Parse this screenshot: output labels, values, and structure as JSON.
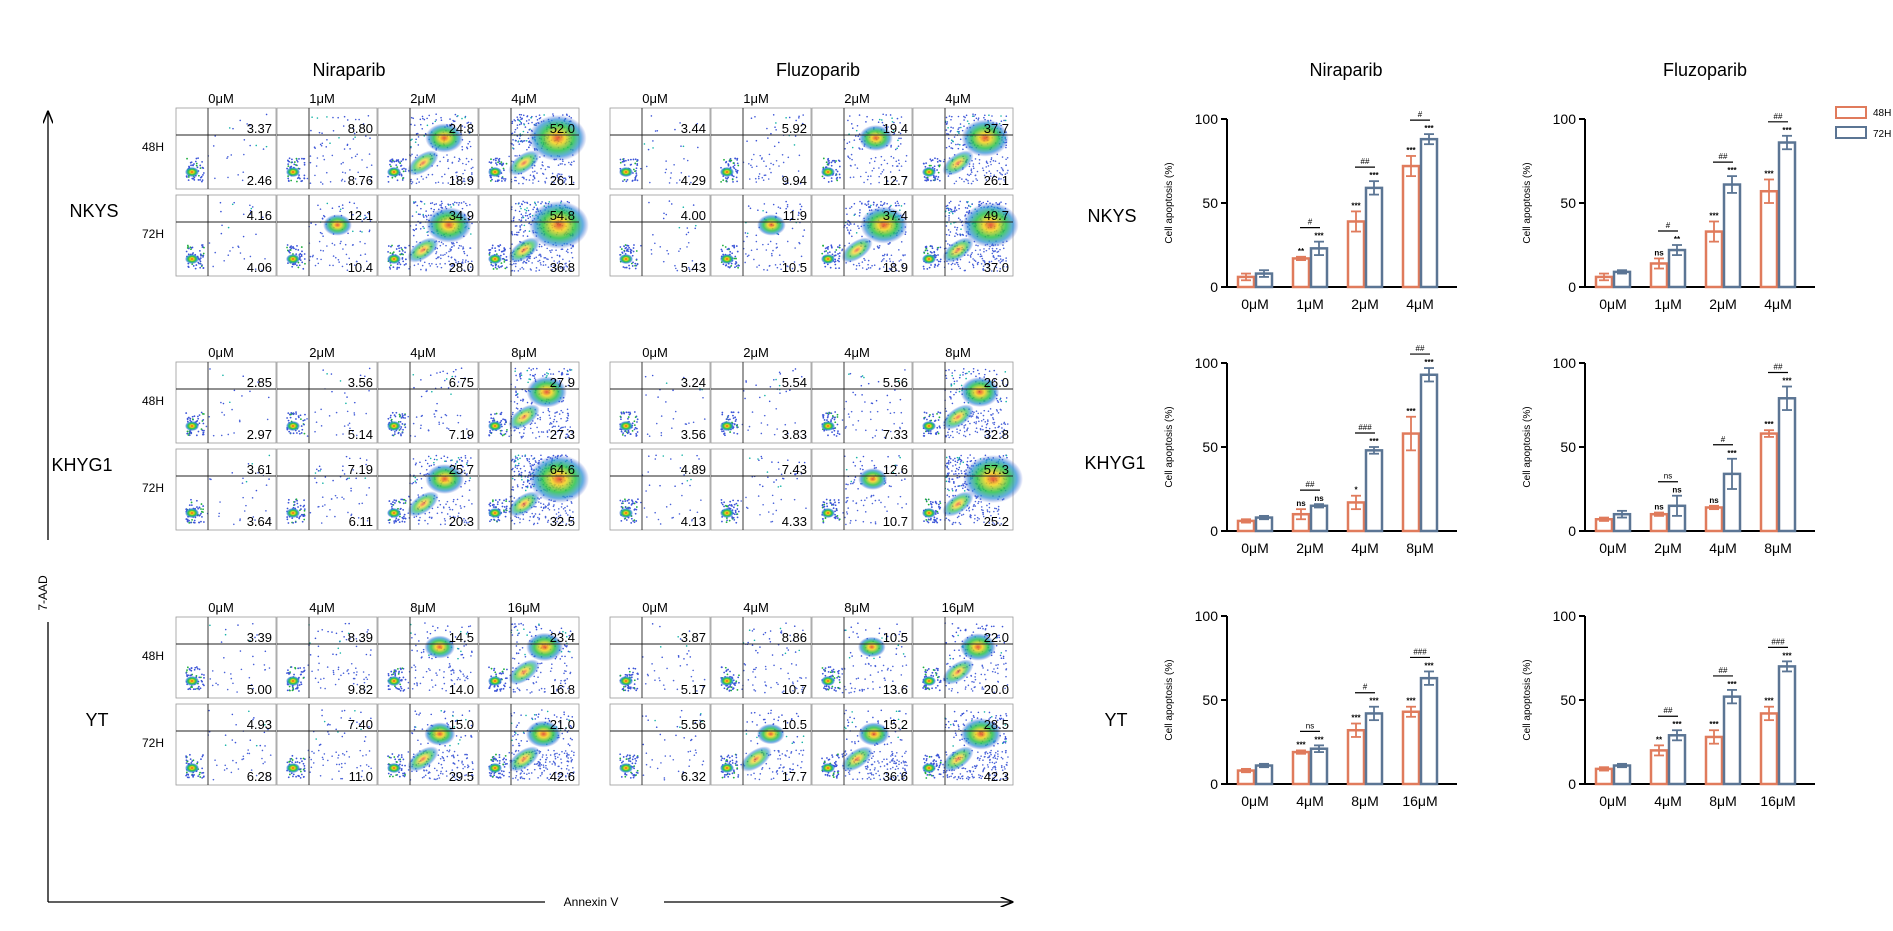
{
  "figure": {
    "flow_titles": [
      "Niraparib",
      "Fluzoparib"
    ],
    "bar_titles": [
      "Niraparib",
      "Fluzoparib"
    ],
    "y_axis_label": "7-AAD",
    "x_axis_label": "Annexin V",
    "time_labels": [
      "48H",
      "72H"
    ],
    "colors": {
      "h48": "#E07B5C",
      "h72": "#5B7594"
    }
  },
  "flow_panels": [
    {
      "cell_line": "NKYS",
      "doses": [
        "0μM",
        "1μM",
        "2μM",
        "4μM"
      ],
      "niraparib": {
        "h48": {
          "ur": [
            "3.37",
            "8.80",
            "24.8",
            "52.0"
          ],
          "lr": [
            "2.46",
            "8.76",
            "18.9",
            "26.1"
          ]
        },
        "h72": {
          "ur": [
            "4.16",
            "12.1",
            "34.9",
            "54.8"
          ],
          "lr": [
            "4.06",
            "10.4",
            "28.0",
            "36.8"
          ]
        }
      },
      "fluzoparib": {
        "h48": {
          "ur": [
            "3.44",
            "5.92",
            "19.4",
            "37.7"
          ],
          "lr": [
            "4.29",
            "9.94",
            "12.7",
            "26.1"
          ]
        },
        "h72": {
          "ur": [
            "4.00",
            "11.9",
            "37.4",
            "49.7"
          ],
          "lr": [
            "5.43",
            "10.5",
            "18.9",
            "37.0"
          ]
        }
      }
    },
    {
      "cell_line": "KHYG1",
      "doses": [
        "0μM",
        "2μM",
        "4μM",
        "8μM"
      ],
      "niraparib": {
        "h48": {
          "ur": [
            "2.85",
            "3.56",
            "6.75",
            "27.9"
          ],
          "lr": [
            "2.97",
            "5.14",
            "7.19",
            "27.3"
          ]
        },
        "h72": {
          "ur": [
            "3.61",
            "7.19",
            "25.7",
            "64.6"
          ],
          "lr": [
            "3.64",
            "6.11",
            "20.3",
            "32.5"
          ]
        }
      },
      "fluzoparib": {
        "h48": {
          "ur": [
            "3.24",
            "5.54",
            "5.56",
            "26.0"
          ],
          "lr": [
            "3.56",
            "3.83",
            "7.33",
            "32.8"
          ]
        },
        "h72": {
          "ur": [
            "4.89",
            "7.43",
            "12.6",
            "57.3"
          ],
          "lr": [
            "4.13",
            "4.33",
            "10.7",
            "25.2"
          ]
        }
      }
    },
    {
      "cell_line": "YT",
      "doses": [
        "0μM",
        "4μM",
        "8μM",
        "16μM"
      ],
      "niraparib": {
        "h48": {
          "ur": [
            "3.39",
            "8.39",
            "14.5",
            "23.4"
          ],
          "lr": [
            "5.00",
            "9.82",
            "14.0",
            "16.8"
          ]
        },
        "h72": {
          "ur": [
            "4.93",
            "7.40",
            "15.0",
            "21.0"
          ],
          "lr": [
            "6.28",
            "11.0",
            "29.5",
            "42.6"
          ]
        }
      },
      "fluzoparib": {
        "h48": {
          "ur": [
            "3.87",
            "8.86",
            "10.5",
            "22.0"
          ],
          "lr": [
            "5.17",
            "10.7",
            "13.6",
            "20.0"
          ]
        },
        "h72": {
          "ur": [
            "5.56",
            "10.5",
            "15.2",
            "28.5"
          ],
          "lr": [
            "6.32",
            "17.7",
            "36.6",
            "42.3"
          ]
        }
      }
    }
  ],
  "chart_data": [
    {
      "type": "bar",
      "cell_line": "NKYS",
      "drug": "Niraparib",
      "ylabel": "Cell apoptosis (%)",
      "ylim": [
        0,
        100
      ],
      "yticks": [
        "0",
        "50",
        "100"
      ],
      "categories": [
        "0μM",
        "1μM",
        "2μM",
        "4μM"
      ],
      "series": [
        {
          "name": "48H",
          "values": [
            6,
            17,
            39,
            72
          ],
          "errors": [
            2,
            1,
            6,
            6
          ],
          "stars": [
            "",
            "**",
            "***",
            "***"
          ]
        },
        {
          "name": "72H",
          "values": [
            8,
            23,
            59,
            88
          ],
          "errors": [
            2,
            4,
            4,
            3
          ],
          "stars": [
            "",
            "***",
            "***",
            "***"
          ]
        }
      ],
      "comparisons": [
        "",
        "#",
        "##",
        "#"
      ]
    },
    {
      "type": "bar",
      "cell_line": "NKYS",
      "drug": "Fluzoparib",
      "ylabel": "Cell apoptosis (%)",
      "ylim": [
        0,
        100
      ],
      "yticks": [
        "0",
        "50",
        "100"
      ],
      "categories": [
        "0μM",
        "1μM",
        "2μM",
        "4μM"
      ],
      "series": [
        {
          "name": "48H",
          "values": [
            6,
            14,
            33,
            57
          ],
          "errors": [
            2,
            3,
            6,
            7
          ],
          "stars": [
            "",
            "ns",
            "***",
            "***"
          ]
        },
        {
          "name": "72H",
          "values": [
            9,
            22,
            61,
            86
          ],
          "errors": [
            1,
            3,
            5,
            4
          ],
          "stars": [
            "",
            "**",
            "***",
            "***"
          ]
        }
      ],
      "comparisons": [
        "",
        "#",
        "##",
        "##"
      ]
    },
    {
      "type": "bar",
      "cell_line": "KHYG1",
      "drug": "Niraparib",
      "ylabel": "Cell apoptosis (%)",
      "ylim": [
        0,
        100
      ],
      "yticks": [
        "0",
        "50",
        "100"
      ],
      "categories": [
        "0μM",
        "2μM",
        "4μM",
        "8μM"
      ],
      "series": [
        {
          "name": "48H",
          "values": [
            6,
            10,
            17,
            58
          ],
          "errors": [
            1,
            3,
            4,
            10
          ],
          "stars": [
            "",
            "ns",
            "*",
            "***"
          ]
        },
        {
          "name": "72H",
          "values": [
            8,
            15,
            48,
            93
          ],
          "errors": [
            1,
            1,
            2,
            4
          ],
          "stars": [
            "",
            "ns",
            "***",
            "***"
          ]
        }
      ],
      "comparisons": [
        "",
        "##",
        "###",
        "##"
      ]
    },
    {
      "type": "bar",
      "cell_line": "KHYG1",
      "drug": "Fluzoparib",
      "ylabel": "Cell apoptosis (%)",
      "ylim": [
        0,
        100
      ],
      "yticks": [
        "0",
        "50",
        "100"
      ],
      "categories": [
        "0μM",
        "2μM",
        "4μM",
        "8μM"
      ],
      "series": [
        {
          "name": "48H",
          "values": [
            7,
            10,
            14,
            58
          ],
          "errors": [
            1,
            1,
            1,
            2
          ],
          "stars": [
            "",
            "ns",
            "ns",
            "***"
          ]
        },
        {
          "name": "72H",
          "values": [
            10,
            15,
            34,
            79
          ],
          "errors": [
            2,
            6,
            9,
            7
          ],
          "stars": [
            "",
            "ns",
            "***",
            "***"
          ]
        }
      ],
      "comparisons": [
        "",
        "ns",
        "#",
        "##"
      ]
    },
    {
      "type": "bar",
      "cell_line": "YT",
      "drug": "Niraparib",
      "ylabel": "Cell apoptosis (%)",
      "ylim": [
        0,
        100
      ],
      "yticks": [
        "0",
        "50",
        "100"
      ],
      "categories": [
        "0μM",
        "4μM",
        "8μM",
        "16μM"
      ],
      "series": [
        {
          "name": "48H",
          "values": [
            8,
            19,
            32,
            43
          ],
          "errors": [
            1,
            1,
            4,
            3
          ],
          "stars": [
            "",
            "***",
            "***",
            "***"
          ]
        },
        {
          "name": "72H",
          "values": [
            11,
            21,
            42,
            63
          ],
          "errors": [
            1,
            2,
            4,
            4
          ],
          "stars": [
            "",
            "***",
            "***",
            "***"
          ]
        }
      ],
      "comparisons": [
        "",
        "ns",
        "#",
        "###"
      ]
    },
    {
      "type": "bar",
      "cell_line": "YT",
      "drug": "Fluzoparib",
      "ylabel": "Cell apoptosis (%)",
      "ylim": [
        0,
        100
      ],
      "yticks": [
        "0",
        "50",
        "100"
      ],
      "categories": [
        "0μM",
        "4μM",
        "8μM",
        "16μM"
      ],
      "series": [
        {
          "name": "48H",
          "values": [
            9,
            20,
            28,
            42
          ],
          "errors": [
            1,
            3,
            4,
            4
          ],
          "stars": [
            "",
            "**",
            "***",
            "***"
          ]
        },
        {
          "name": "72H",
          "values": [
            11,
            29,
            52,
            70
          ],
          "errors": [
            1,
            3,
            4,
            3
          ],
          "stars": [
            "",
            "***",
            "***",
            "***"
          ]
        }
      ],
      "comparisons": [
        "",
        "##",
        "##",
        "###"
      ]
    }
  ]
}
